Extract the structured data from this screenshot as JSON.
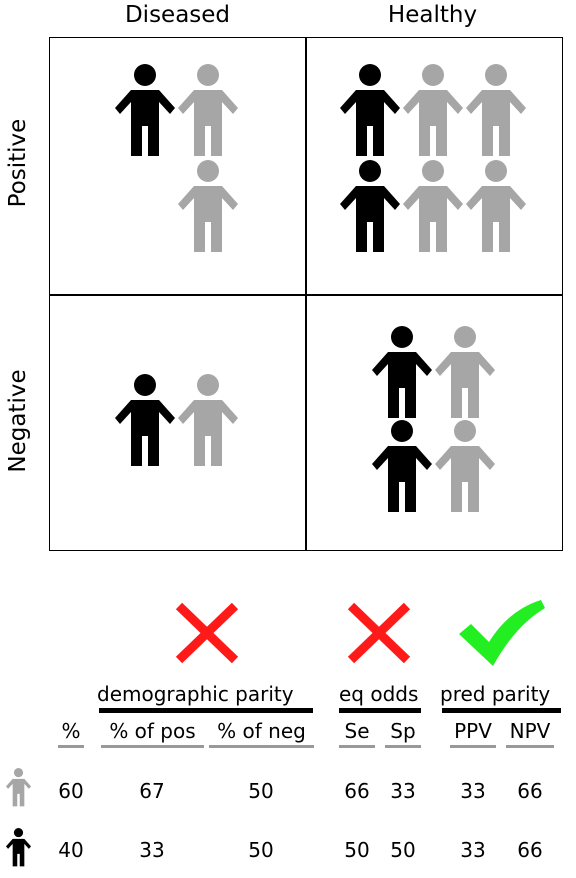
{
  "header": {
    "col_diseased": "Diseased",
    "col_healthy": "Healthy",
    "row_positive": "Positive",
    "row_negative": "Negative"
  },
  "colors": {
    "group_a": "#a6a6a6",
    "group_b": "#000000",
    "cross": "#ff1a1a",
    "check": "#22ee22",
    "underline": "#999999"
  },
  "groups": {
    "demographic": "demographic parity",
    "eq_odds": "eq odds",
    "pred_parity": "pred parity"
  },
  "verdicts": {
    "demographic": "cross-icon",
    "eq_odds": "cross-icon",
    "pred_parity": "check-icon"
  },
  "columns": {
    "pct": "%",
    "pct_pos": "% of pos",
    "pct_neg": "% of neg",
    "se": "Se",
    "sp": "Sp",
    "ppv": "PPV",
    "npv": "NPV"
  },
  "rows": {
    "gray": {
      "pct": "60",
      "pct_pos": "67",
      "pct_neg": "50",
      "se": "66",
      "sp": "33",
      "ppv": "33",
      "npv": "66"
    },
    "black": {
      "pct": "40",
      "pct_pos": "33",
      "pct_neg": "50",
      "se": "50",
      "sp": "50",
      "ppv": "33",
      "npv": "66"
    }
  }
}
